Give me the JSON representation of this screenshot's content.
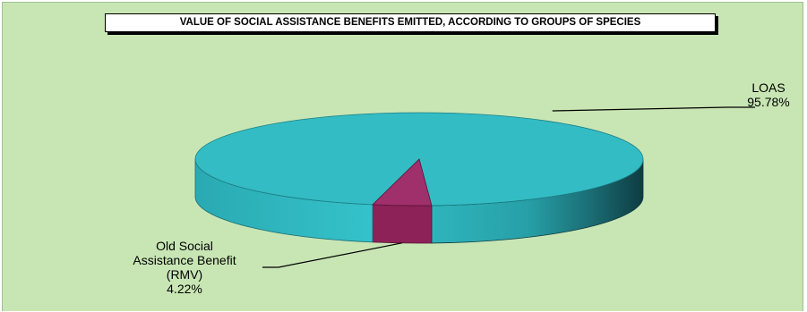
{
  "chart_data": {
    "type": "pie",
    "title": "VALUE OF SOCIAL ASSISTANCE BENEFITS EMITTED, ACCORDING TO GROUPS OF SPECIES",
    "three_d": true,
    "slices": [
      {
        "name": "LOAS",
        "value": 95.78,
        "label_lines": [
          "LOAS"
        ],
        "value_label": "95.78%",
        "color": "#33bcc4"
      },
      {
        "name": "Old Social Assistance Benefit (RMV)",
        "value": 4.22,
        "label_lines": [
          "Old Social",
          "Assistance Benefit",
          "(RMV)"
        ],
        "value_label": "4.22%",
        "color": "#a0306c"
      }
    ],
    "legend": "none",
    "background_color": "#c8e6b4"
  }
}
